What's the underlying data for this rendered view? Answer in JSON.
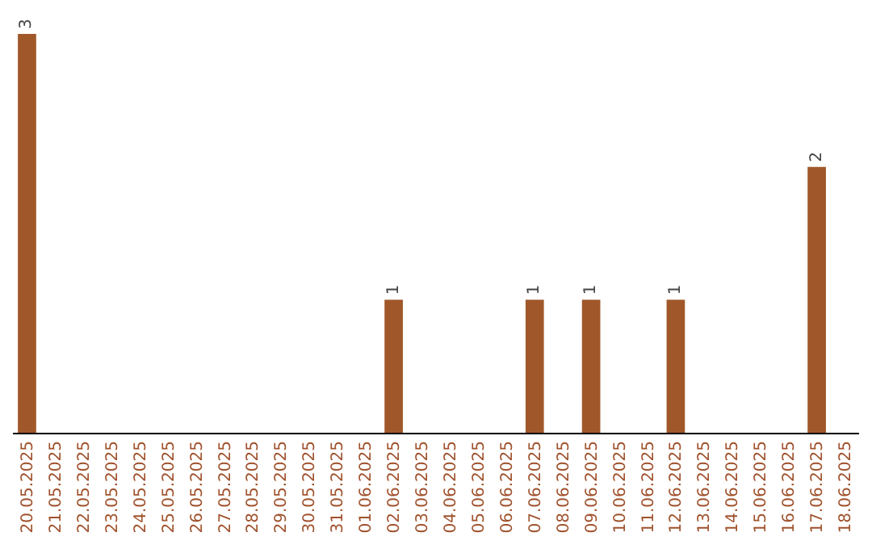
{
  "chart_data": {
    "type": "bar",
    "categories": [
      "20.05.2025",
      "21.05.2025",
      "22.05.2025",
      "23.05.2025",
      "24.05.2025",
      "25.05.2025",
      "26.05.2025",
      "27.05.2025",
      "28.05.2025",
      "29.05.2025",
      "30.05.2025",
      "31.05.2025",
      "01.06.2025",
      "02.06.2025",
      "03.06.2025",
      "04.06.2025",
      "05.06.2025",
      "06.06.2025",
      "07.06.2025",
      "08.06.2025",
      "09.06.2025",
      "10.06.2025",
      "11.06.2025",
      "12.06.2025",
      "13.06.2025",
      "14.06.2025",
      "15.06.2025",
      "16.06.2025",
      "17.06.2025",
      "18.06.2025"
    ],
    "values": [
      3,
      0,
      0,
      0,
      0,
      0,
      0,
      0,
      0,
      0,
      0,
      0,
      0,
      1,
      0,
      0,
      0,
      0,
      1,
      0,
      1,
      0,
      0,
      1,
      0,
      0,
      0,
      0,
      2,
      0
    ],
    "value_labels": [
      "3",
      null,
      null,
      null,
      null,
      null,
      null,
      null,
      null,
      null,
      null,
      null,
      null,
      "1",
      null,
      null,
      null,
      null,
      "1",
      null,
      "1",
      null,
      null,
      "1",
      null,
      null,
      null,
      null,
      "2",
      null
    ],
    "color": "#a0582a",
    "tick_labels": "x"
  }
}
